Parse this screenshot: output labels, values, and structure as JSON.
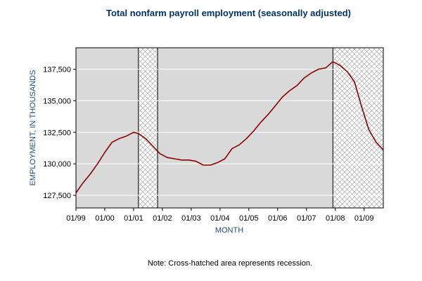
{
  "chart_data": {
    "type": "line",
    "title": "Total nonfarm payroll employment (seasonally adjusted)",
    "xlabel": "MONTH",
    "ylabel": "EMPLOYMENT, IN THOUSANDS",
    "note": "Note: Cross-hatched area represents recession.",
    "x_tick_labels": [
      "01/99",
      "01/00",
      "01/01",
      "01/02",
      "01/03",
      "01/04",
      "01/05",
      "01/06",
      "01/07",
      "01/08",
      "01/09"
    ],
    "y_ticks": [
      127500,
      130000,
      132500,
      135000,
      137500
    ],
    "y_tick_labels": [
      "127,500",
      "130,000",
      "132,500",
      "135,000",
      "137,500"
    ],
    "xlim": [
      "1999-01",
      "2009-09"
    ],
    "ylim": [
      126500,
      139200
    ],
    "grid": true,
    "recessions": [
      {
        "start": "2001-03",
        "end": "2001-11"
      },
      {
        "start": "2007-12",
        "end": "2009-09"
      }
    ],
    "series": [
      {
        "x": [
          "1999-01",
          "1999-04",
          "1999-07",
          "1999-10",
          "2000-01",
          "2000-04",
          "2000-07",
          "2000-10",
          "2001-01",
          "2001-03",
          "2001-06",
          "2001-09",
          "2001-12",
          "2002-03",
          "2002-06",
          "2002-09",
          "2002-12",
          "2003-03",
          "2003-06",
          "2003-09",
          "2003-12",
          "2004-03",
          "2004-06",
          "2004-09",
          "2004-12",
          "2005-03",
          "2005-06",
          "2005-09",
          "2005-12",
          "2006-03",
          "2006-06",
          "2006-09",
          "2006-12",
          "2007-03",
          "2007-06",
          "2007-09",
          "2007-12",
          "2008-03",
          "2008-06",
          "2008-09",
          "2008-12",
          "2009-03",
          "2009-06",
          "2009-09"
        ],
        "values": [
          127700,
          128500,
          129200,
          130000,
          130900,
          131700,
          132000,
          132200,
          132500,
          132400,
          132000,
          131400,
          130800,
          130500,
          130400,
          130300,
          130300,
          130200,
          129900,
          129900,
          130100,
          130400,
          131200,
          131500,
          132000,
          132600,
          133300,
          133900,
          134600,
          135300,
          135800,
          136200,
          136800,
          137200,
          137500,
          137600,
          138100,
          137800,
          137300,
          136500,
          134500,
          132700,
          131700,
          131100
        ]
      }
    ]
  },
  "colors": {
    "line": "#8b0000",
    "plot_bg": "#d9d9d9",
    "title": "#003366",
    "axis_label": "#1f4e79"
  }
}
